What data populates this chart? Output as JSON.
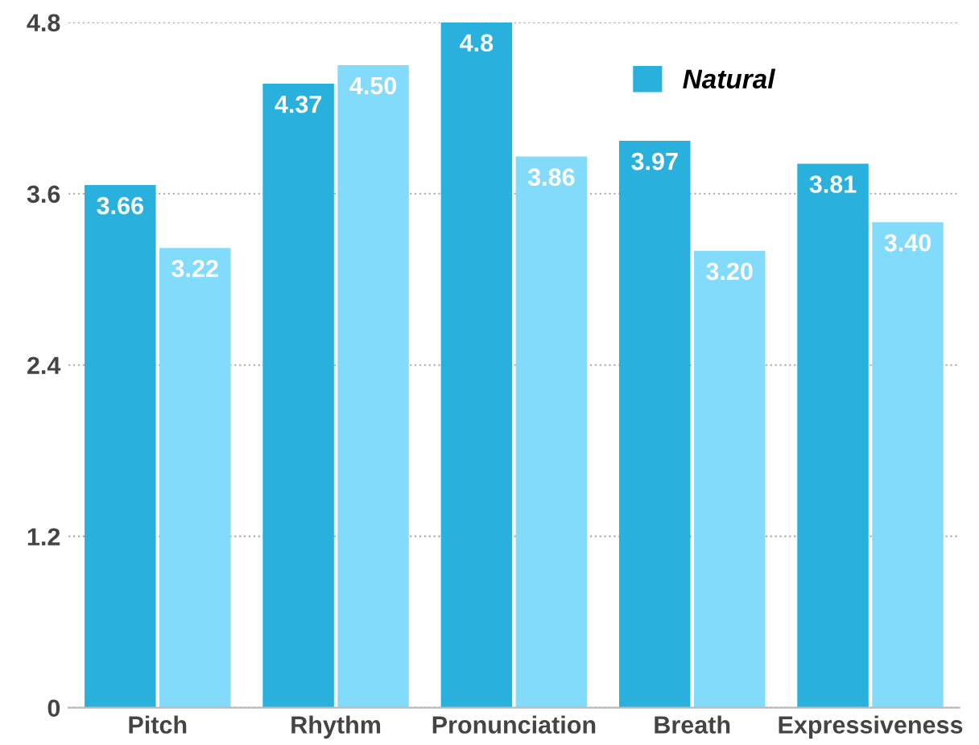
{
  "chart_data": {
    "type": "bar",
    "categories": [
      "Pitch",
      "Rhythm",
      "Pronunciation",
      "Breath",
      "Expressiveness"
    ],
    "series": [
      {
        "name": "Natural",
        "color": "#29b0dc",
        "values": [
          3.66,
          4.37,
          4.8,
          3.97,
          3.81
        ],
        "value_labels": [
          "3.66",
          "4.37",
          "4.8",
          "3.97",
          "3.81"
        ]
      },
      {
        "color": "#82dbfb",
        "values": [
          3.22,
          4.5,
          3.86,
          3.2,
          3.4
        ],
        "value_labels": [
          "3.22",
          "4.50",
          "3.86",
          "3.20",
          "3.40"
        ]
      }
    ],
    "ylim": [
      0,
      4.8
    ],
    "yticks": [
      0,
      1.2,
      2.4,
      3.6,
      4.8
    ],
    "grid": "y",
    "legend": "top right"
  }
}
